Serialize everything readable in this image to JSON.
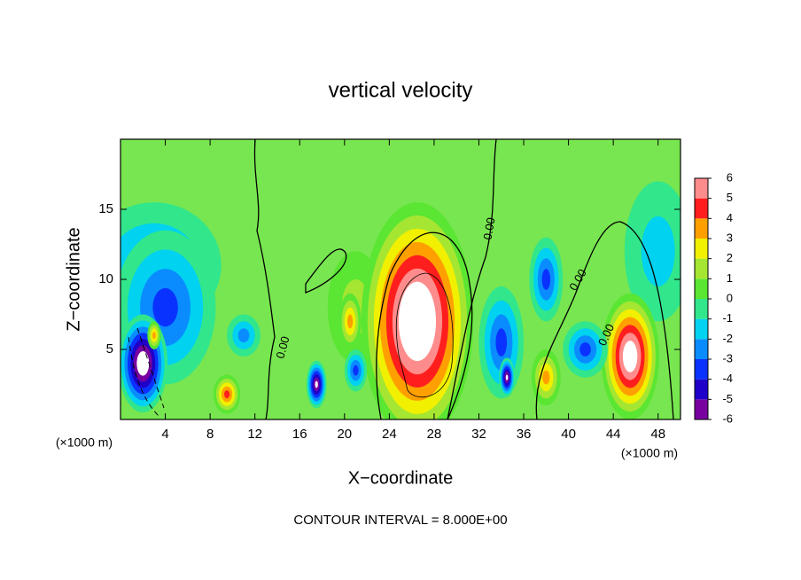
{
  "chart_data": {
    "type": "contour",
    "title": "vertical velocity",
    "x_label": "X−coordinate",
    "y_label": "Z−coordinate",
    "x_unit": "(×1000 m)",
    "y_unit": "(×1000 m)",
    "footer": "CONTOUR INTERVAL = 8.000E+00",
    "xlim": [
      0,
      50
    ],
    "ylim": [
      0,
      20
    ],
    "xticks": [
      4,
      8,
      12,
      16,
      20,
      24,
      28,
      32,
      36,
      40,
      44,
      48
    ],
    "yticks": [
      5,
      10,
      15
    ],
    "colorbar_ticks": [
      6,
      5,
      4,
      3,
      2,
      1,
      0,
      -1,
      -2,
      -3,
      -4,
      -5,
      -6
    ],
    "colorbar_colors": [
      "#7800a0",
      "#1e00c8",
      "#0a32ff",
      "#0a8cff",
      "#00d2f0",
      "#32e68c",
      "#5ae632",
      "#a5e632",
      "#f0f000",
      "#ffa000",
      "#ff1e1e",
      "#ff8c8c"
    ],
    "contour_labels": [
      "0.00",
      "0.00",
      "0.00",
      "0.00"
    ],
    "features": [
      {
        "x": 3,
        "z": 11,
        "rx": 6,
        "rz": 4.5,
        "value": -3
      },
      {
        "x": 4,
        "z": 8,
        "rx": 4.5,
        "rz": 5.5,
        "value": -4
      },
      {
        "x": 2,
        "z": 4,
        "rx": 2.2,
        "rz": 3.5,
        "value": -8
      },
      {
        "x": 48,
        "z": 12,
        "rx": 3,
        "rz": 5,
        "value": -2
      },
      {
        "x": 21,
        "z": 8,
        "rx": 2.5,
        "rz": 4,
        "value": 2
      },
      {
        "x": 26.5,
        "z": 7,
        "rx": 5,
        "rz": 8.5,
        "value": 9
      },
      {
        "x": 45.5,
        "z": 4.5,
        "rx": 2.6,
        "rz": 4.5,
        "value": 8
      },
      {
        "x": 9.5,
        "z": 1.8,
        "rx": 1.2,
        "rz": 1.4,
        "value": 5
      },
      {
        "x": 34,
        "z": 5.5,
        "rx": 2,
        "rz": 4,
        "value": -4
      },
      {
        "x": 38,
        "z": 10,
        "rx": 1.5,
        "rz": 3,
        "value": -4
      },
      {
        "x": 38,
        "z": 3,
        "rx": 1.3,
        "rz": 2,
        "value": 4
      },
      {
        "x": 21,
        "z": 3.5,
        "rx": 1,
        "rz": 1.5,
        "value": -4
      },
      {
        "x": 17.5,
        "z": 2.5,
        "rx": 0.9,
        "rz": 1.7,
        "value": -7
      },
      {
        "x": 34.5,
        "z": 3,
        "rx": 0.7,
        "rz": 1.4,
        "value": -7
      },
      {
        "x": 20.5,
        "z": 7,
        "rx": 1,
        "rz": 2,
        "value": 4
      },
      {
        "x": 41.5,
        "z": 5,
        "rx": 2,
        "rz": 2,
        "value": -4
      },
      {
        "x": 3,
        "z": 6,
        "rx": 0.6,
        "rz": 1,
        "value": 4
      },
      {
        "x": 11,
        "z": 6,
        "rx": 1.5,
        "rz": 1.5,
        "value": -3
      }
    ]
  }
}
